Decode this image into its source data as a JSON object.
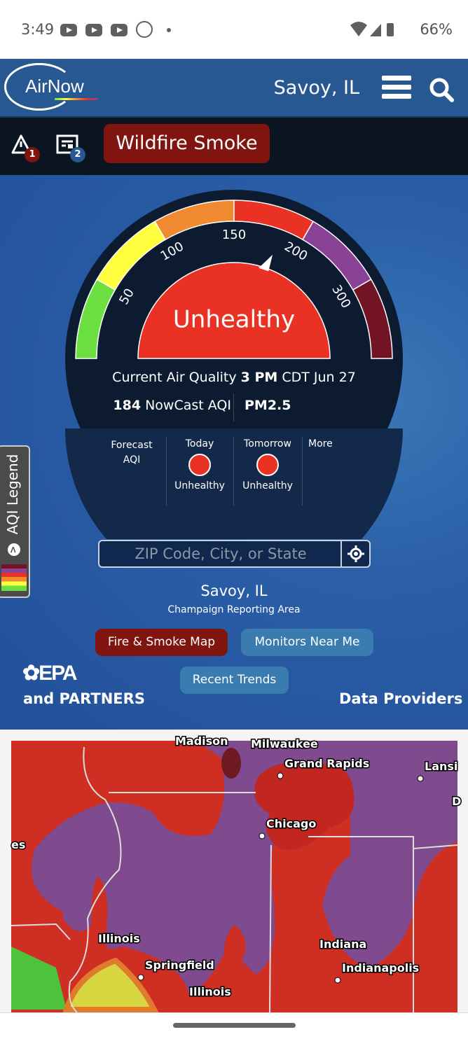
{
  "status_bar": {
    "time": "3:49",
    "battery": "66%",
    "icons": [
      "youtube-icon",
      "youtube-icon",
      "youtube-icon",
      "g-app-icon",
      "dot",
      "wifi-icon",
      "signal-icon",
      "battery-icon"
    ]
  },
  "header": {
    "logo": "AirNow",
    "location": "Savoy, IL",
    "menu_icon": "hamburger-icon",
    "search_icon": "search-icon"
  },
  "alerts": {
    "alert_count": "1",
    "news_count": "2",
    "banner": "Wildfire Smoke"
  },
  "gauge": {
    "aqi": 184,
    "category": "Unhealthy",
    "ticks": [
      "50",
      "100",
      "150",
      "200",
      "300"
    ],
    "segments": [
      {
        "from": 0,
        "to": 50,
        "color": "#6be040"
      },
      {
        "from": 50,
        "to": 100,
        "color": "#ffff40"
      },
      {
        "from": 100,
        "to": 150,
        "color": "#f08a30"
      },
      {
        "from": 150,
        "to": 200,
        "color": "#e93224"
      },
      {
        "from": 200,
        "to": 300,
        "color": "#8a4296"
      },
      {
        "from": 300,
        "to": 500,
        "color": "#731424"
      }
    ],
    "category_color": "#e93224",
    "current_label": "Current Air Quality",
    "current_time": "3 PM",
    "current_date": "CDT Jun 27",
    "nowcast_value": "184",
    "nowcast_label": "NowCast AQI",
    "pollutant": "PM2.5"
  },
  "forecast": {
    "label_line1": "Forecast",
    "label_line2": "AQI",
    "today_label": "Today",
    "today_category": "Unhealthy",
    "tomorrow_label": "Tomorrow",
    "tomorrow_category": "Unhealthy",
    "more_link": "More"
  },
  "legend_tab": {
    "label": "AQI Legend"
  },
  "search": {
    "placeholder": "ZIP Code, City, or State"
  },
  "location": {
    "name": "Savoy, IL",
    "area": "Champaign Reporting Area"
  },
  "buttons": {
    "fire_smoke_map": "Fire & Smoke Map",
    "monitors": "Monitors Near Me",
    "recent_trends": "Recent Trends"
  },
  "footer": {
    "epa": "EPA",
    "and": "and",
    "partners": "PARTNERS",
    "data_providers": "Data Providers"
  },
  "map": {
    "labels": [
      "Madison",
      "Milwaukee",
      "Grand Rapids",
      "Lansi",
      "Chicago",
      "es",
      "Illinois",
      "Springfield",
      "Illinois",
      "Indiana",
      "Indianapolis",
      "D"
    ]
  }
}
